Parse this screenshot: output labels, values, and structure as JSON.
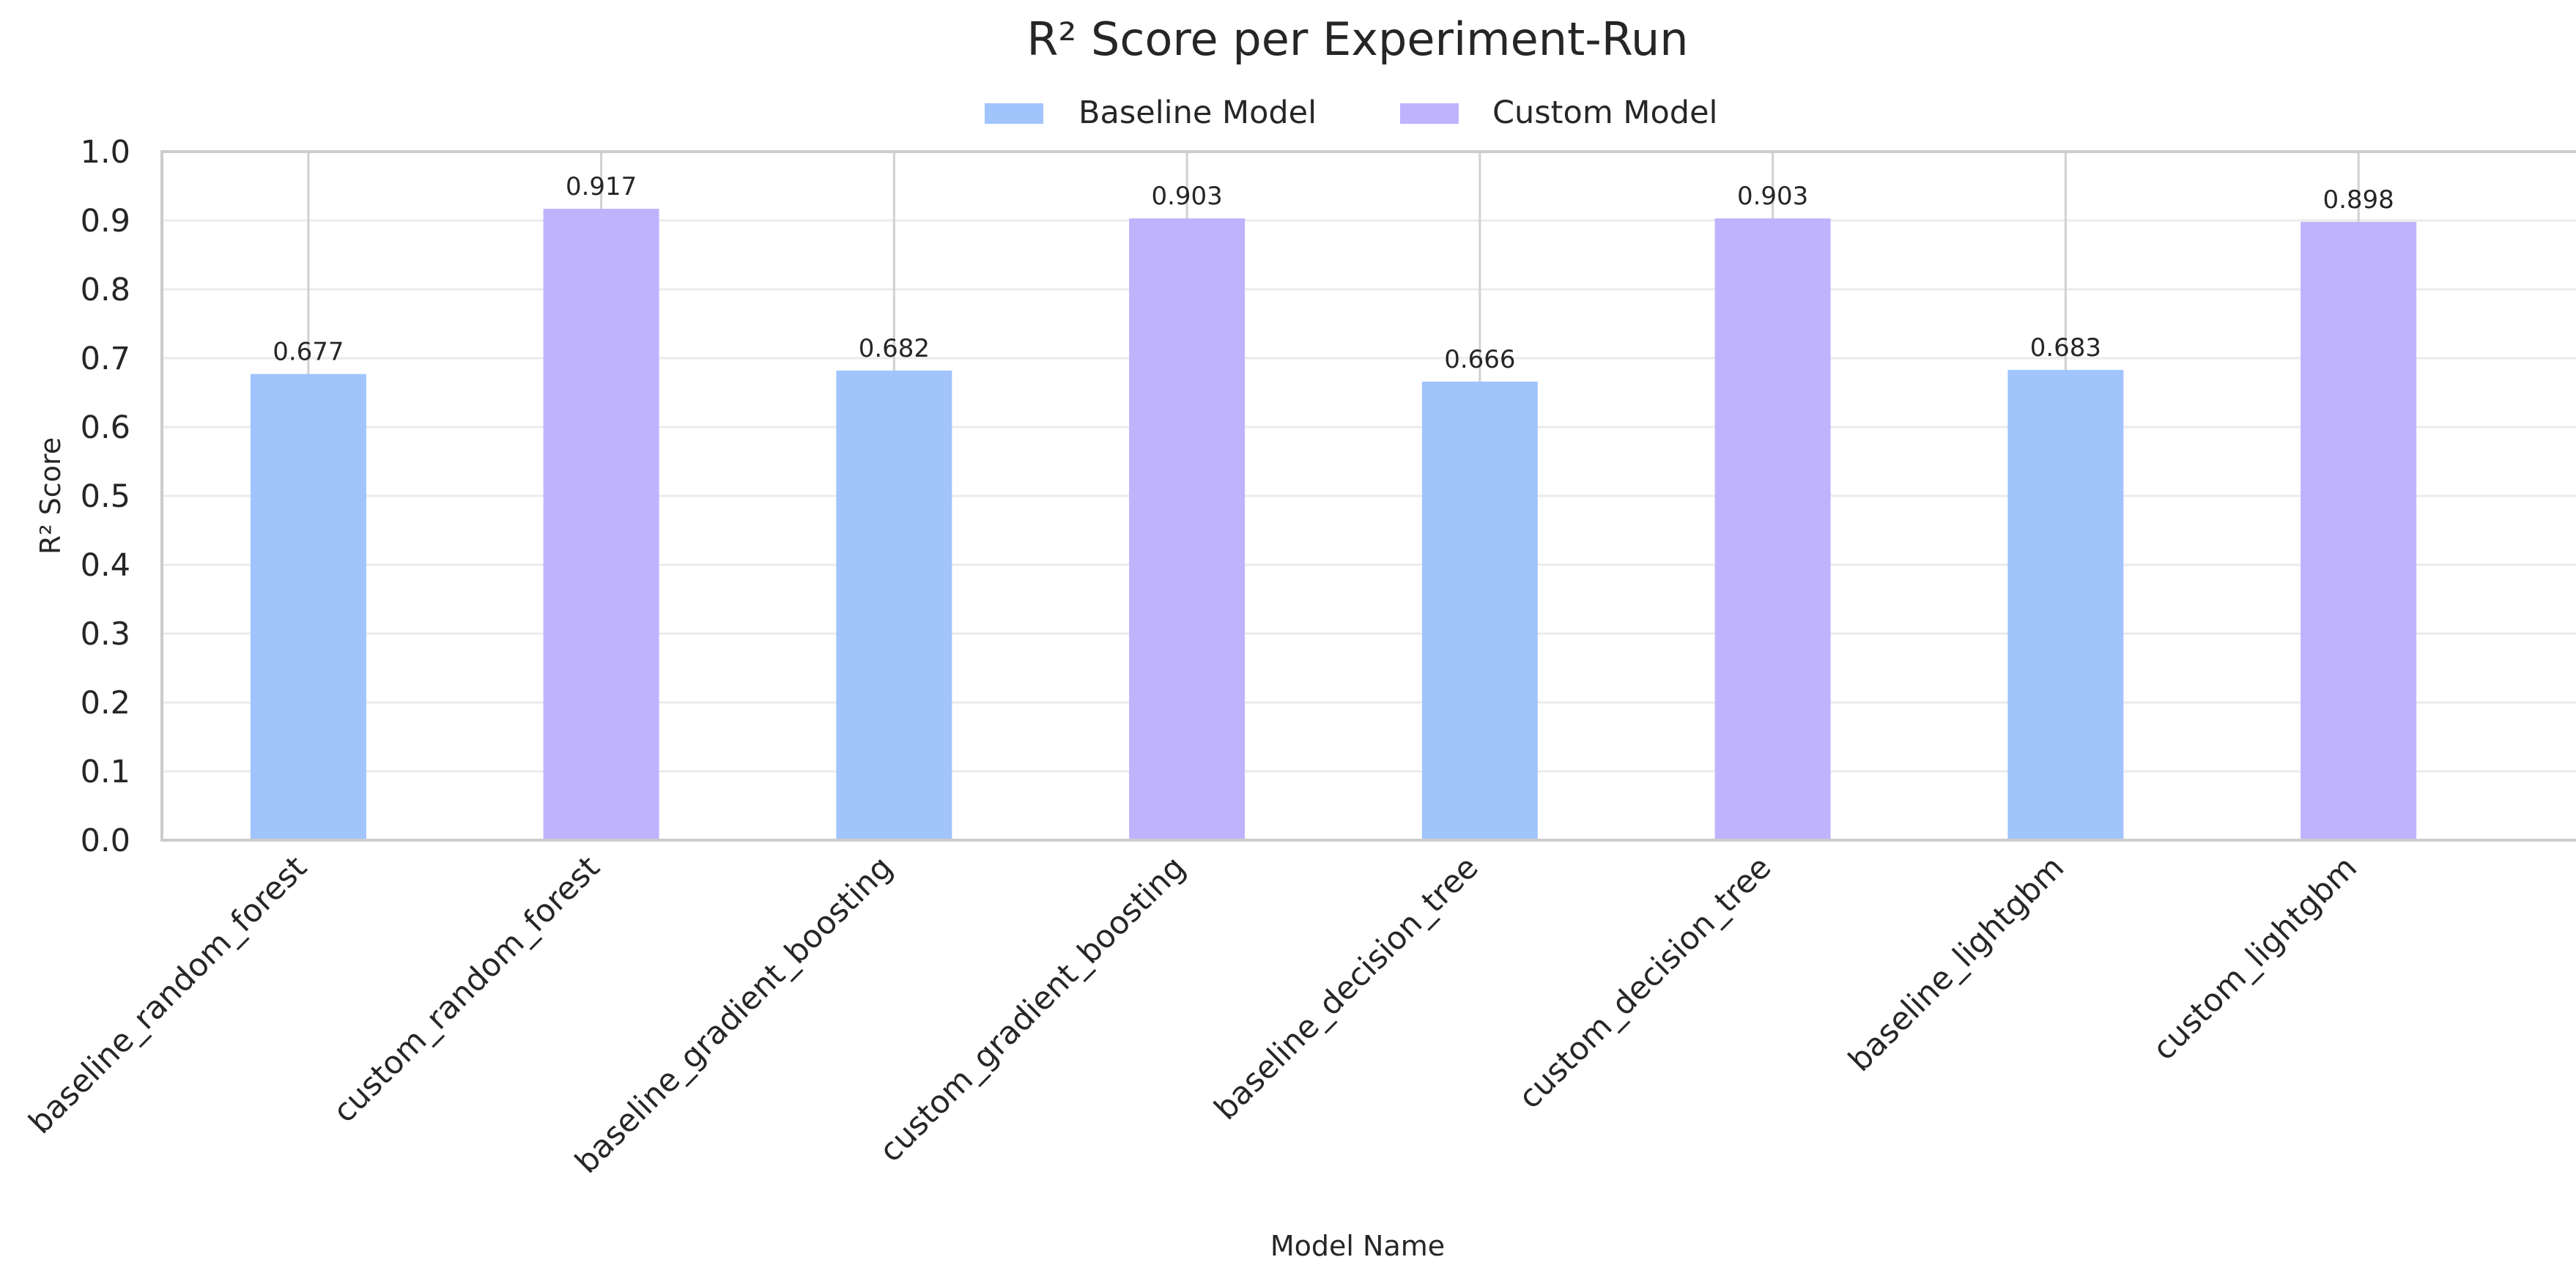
{
  "chart_data": {
    "type": "bar",
    "title": "R² Score per Experiment-Run",
    "xlabel": "Model Name",
    "ylabel": "R² Score",
    "ylim": [
      0,
      1.0
    ],
    "yticks": [
      "0.0",
      "0.1",
      "0.2",
      "0.3",
      "0.4",
      "0.5",
      "0.6",
      "0.7",
      "0.8",
      "0.9",
      "1.0"
    ],
    "grid": true,
    "legend_position": "top-center",
    "legend": [
      {
        "name": "Baseline Model",
        "color": "#a1c4fd"
      },
      {
        "name": "Custom Model",
        "color": "#bfb3fe"
      }
    ],
    "categories": [
      "baseline_random_forest",
      "custom_random_forest",
      "baseline_gradient_boosting",
      "custom_gradient_boosting",
      "baseline_decision_tree",
      "custom_decision_tree",
      "baseline_lightgbm",
      "custom_lightgbm"
    ],
    "values": [
      0.677,
      0.917,
      0.682,
      0.903,
      0.666,
      0.903,
      0.683,
      0.898
    ],
    "value_labels": [
      "0.677",
      "0.917",
      "0.682",
      "0.903",
      "0.666",
      "0.903",
      "0.683",
      "0.898"
    ],
    "groups": [
      "Baseline Model",
      "Custom Model",
      "Baseline Model",
      "Custom Model",
      "Baseline Model",
      "Custom Model",
      "Baseline Model",
      "Custom Model"
    ]
  }
}
